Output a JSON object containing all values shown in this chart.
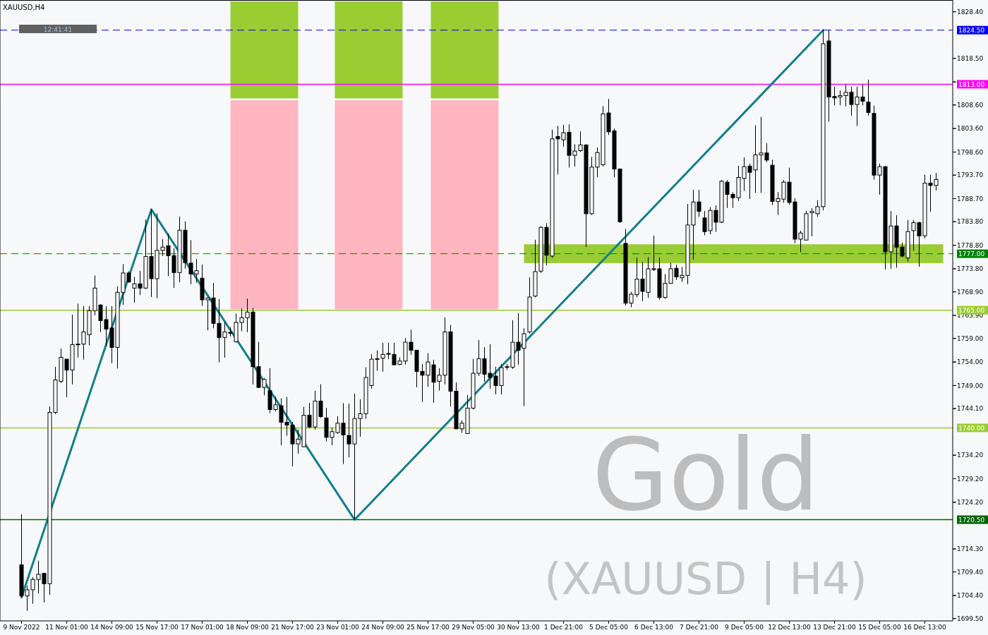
{
  "chart_data": {
    "type": "candlestick",
    "title": "XAUUSD,H4",
    "annotations": [
      "Gold",
      "(XAUUSD | H4)",
      "12:41:41"
    ],
    "categories": [
      "9 Nov 2022",
      null,
      null,
      null,
      null,
      null,
      null,
      null,
      "11 Nov 01:00",
      null,
      null,
      null,
      null,
      null,
      null,
      null,
      "14 Nov 09:00",
      null,
      null,
      null,
      null,
      null,
      null,
      null,
      "15 Nov 17:00",
      null,
      null,
      null,
      null,
      null,
      null,
      null,
      "17 Nov 01:00",
      null,
      null,
      null,
      null,
      null,
      null,
      null,
      "18 Nov 09:00",
      null,
      null,
      null,
      null,
      null,
      null,
      null,
      "21 Nov 17:00",
      null,
      null,
      null,
      null,
      null,
      null,
      null,
      "23 Nov 01:00",
      null,
      null,
      null,
      null,
      null,
      null,
      null,
      "24 Nov 09:00",
      null,
      null,
      null,
      null,
      null,
      null,
      null,
      "25 Nov 17:00",
      null,
      null,
      null,
      null,
      null,
      null,
      null,
      "29 Nov 05:00",
      null,
      null,
      null,
      null,
      null,
      null,
      null,
      "30 Nov 13:00",
      null,
      null,
      null,
      null,
      null,
      null,
      null,
      "1 Dec 21:00",
      null,
      null,
      null,
      null,
      null,
      null,
      null,
      "5 Dec 05:00",
      null,
      null,
      null,
      null,
      null,
      null,
      null,
      "6 Dec 13:00",
      null,
      null,
      null,
      null,
      null,
      null,
      null,
      "7 Dec 21:00",
      null,
      null,
      null,
      null,
      null,
      null,
      null,
      "9 Dec 05:00",
      null,
      null,
      null,
      null,
      null,
      null,
      null,
      "12 Dec 13:00",
      null,
      null,
      null,
      null,
      null,
      null,
      null,
      "13 Dec 21:00",
      null,
      null,
      null,
      null,
      null,
      null,
      null,
      "15 Dec 05:00",
      null,
      null,
      null,
      null,
      null,
      null,
      null,
      "16 Dec 13:00",
      null,
      null
    ],
    "ohlc": [
      [
        1710.9,
        1721.6,
        1704.0,
        1704.3
      ],
      [
        1704.3,
        1706.4,
        1701.2,
        1705.6
      ],
      [
        1705.6,
        1708.2,
        1702.7,
        1707.8
      ],
      [
        1707.8,
        1711.7,
        1704.9,
        1708.9
      ],
      [
        1709.1,
        1709.1,
        1703.0,
        1706.9
      ],
      [
        1706.9,
        1744.5,
        1704.6,
        1743.3
      ],
      [
        1743.3,
        1752.9,
        1743.0,
        1750.2
      ],
      [
        1749.9,
        1756.8,
        1749.6,
        1755.0
      ],
      [
        1754.6,
        1754.6,
        1746.6,
        1752.3
      ],
      [
        1752.3,
        1764.0,
        1749.3,
        1757.7
      ],
      [
        1757.7,
        1766.3,
        1755.0,
        1757.8
      ],
      [
        1757.8,
        1765.8,
        1754.6,
        1760.4
      ],
      [
        1759.8,
        1765.8,
        1757.6,
        1764.9
      ],
      [
        1764.9,
        1772.3,
        1764.0,
        1769.7
      ],
      [
        1766.1,
        1766.2,
        1760.4,
        1762.8
      ],
      [
        1763.0,
        1765.8,
        1757.4,
        1761.0
      ],
      [
        1761.2,
        1765.8,
        1753.8,
        1757.1
      ],
      [
        1757.1,
        1770.0,
        1752.7,
        1768.8
      ],
      [
        1768.8,
        1774.7,
        1766.2,
        1772.9
      ],
      [
        1772.9,
        1773.2,
        1770.9,
        1771.0
      ],
      [
        1769.7,
        1772.0,
        1766.7,
        1770.6
      ],
      [
        1770.6,
        1773.3,
        1768.3,
        1769.7
      ],
      [
        1769.7,
        1784.2,
        1769.6,
        1776.4
      ],
      [
        1776.4,
        1786.4,
        1767.9,
        1771.7
      ],
      [
        1771.7,
        1785.5,
        1767.6,
        1777.7
      ],
      [
        1777.7,
        1780.0,
        1776.6,
        1778.4
      ],
      [
        1778.7,
        1781.2,
        1772.3,
        1776.6
      ],
      [
        1776.6,
        1778.1,
        1769.8,
        1773.0
      ],
      [
        1773.0,
        1784.8,
        1771.0,
        1782.0
      ],
      [
        1782.0,
        1783.8,
        1773.9,
        1775.1
      ],
      [
        1775.0,
        1779.8,
        1770.6,
        1772.7
      ],
      [
        1772.7,
        1775.8,
        1770.9,
        1773.4
      ],
      [
        1771.8,
        1774.6,
        1766.0,
        1767.2
      ],
      [
        1767.2,
        1767.6,
        1760.8,
        1767.6
      ],
      [
        1767.6,
        1770.7,
        1761.2,
        1762.2
      ],
      [
        1762.2,
        1767.3,
        1754.0,
        1759.2
      ],
      [
        1759.2,
        1762.4,
        1755.0,
        1760.4
      ],
      [
        1760.3,
        1761.3,
        1759.5,
        1760.1
      ],
      [
        1758.3,
        1764.2,
        1758.2,
        1762.4
      ],
      [
        1762.4,
        1765.3,
        1760.6,
        1763.4
      ],
      [
        1763.4,
        1767.4,
        1760.4,
        1764.6
      ],
      [
        1764.6,
        1765.4,
        1749.3,
        1753.0
      ],
      [
        1753.0,
        1758.2,
        1748.6,
        1748.6
      ],
      [
        1748.6,
        1750.5,
        1747.0,
        1750.3
      ],
      [
        1747.9,
        1752.6,
        1743.2,
        1743.9
      ],
      [
        1743.9,
        1746.6,
        1743.6,
        1744.9
      ],
      [
        1744.7,
        1746.2,
        1736.4,
        1741.2
      ],
      [
        1741.2,
        1746.5,
        1738.4,
        1740.6
      ],
      [
        1740.6,
        1741.2,
        1731.9,
        1736.6
      ],
      [
        1736.6,
        1739.6,
        1734.6,
        1737.6
      ],
      [
        1736.0,
        1744.4,
        1736.0,
        1742.7
      ],
      [
        1742.7,
        1745.2,
        1740.0,
        1740.2
      ],
      [
        1740.2,
        1747.8,
        1739.7,
        1745.7
      ],
      [
        1745.7,
        1749.2,
        1742.2,
        1742.4
      ],
      [
        1742.1,
        1744.2,
        1737.2,
        1738.0
      ],
      [
        1738.0,
        1740.0,
        1736.4,
        1739.2
      ],
      [
        1739.0,
        1742.4,
        1738.8,
        1741.0
      ],
      [
        1741.0,
        1745.2,
        1732.4,
        1738.5
      ],
      [
        1738.4,
        1745.1,
        1733.8,
        1736.6
      ],
      [
        1736.6,
        1747.2,
        1720.5,
        1742.0
      ],
      [
        1742.0,
        1746.0,
        1738.2,
        1743.0
      ],
      [
        1743.0,
        1752.8,
        1742.0,
        1750.7
      ],
      [
        1749.0,
        1755.6,
        1748.4,
        1754.6
      ],
      [
        1754.6,
        1756.4,
        1752.2,
        1754.7
      ],
      [
        1754.8,
        1758.0,
        1752.0,
        1755.6
      ],
      [
        1755.7,
        1758.0,
        1754.7,
        1755.8
      ],
      [
        1755.6,
        1758.0,
        1753.4,
        1753.4
      ],
      [
        1753.5,
        1754.9,
        1753.4,
        1754.2
      ],
      [
        1754.2,
        1759.0,
        1753.5,
        1758.2
      ],
      [
        1758.2,
        1760.8,
        1755.6,
        1756.5
      ],
      [
        1756.5,
        1756.5,
        1748.7,
        1752.0
      ],
      [
        1752.0,
        1753.5,
        1745.6,
        1751.2
      ],
      [
        1751.2,
        1755.8,
        1748.8,
        1754.0
      ],
      [
        1753.4,
        1754.4,
        1745.4,
        1749.7
      ],
      [
        1749.9,
        1752.6,
        1748.0,
        1751.2
      ],
      [
        1751.2,
        1763.4,
        1749.3,
        1760.4
      ],
      [
        1760.4,
        1761.8,
        1744.6,
        1747.8
      ],
      [
        1747.8,
        1749.6,
        1739.8,
        1739.8
      ],
      [
        1739.8,
        1741.5,
        1739.0,
        1741.0
      ],
      [
        1738.8,
        1746.9,
        1738.8,
        1744.2
      ],
      [
        1744.2,
        1754.6,
        1744.0,
        1751.6
      ],
      [
        1751.6,
        1758.6,
        1751.1,
        1754.7
      ],
      [
        1754.7,
        1757.1,
        1749.9,
        1751.4
      ],
      [
        1751.6,
        1757.7,
        1748.4,
        1750.7
      ],
      [
        1751.0,
        1752.9,
        1747.2,
        1749.0
      ],
      [
        1749.0,
        1753.5,
        1747.2,
        1752.8
      ],
      [
        1752.9,
        1753.5,
        1752.4,
        1753.0
      ],
      [
        1752.9,
        1762.8,
        1752.6,
        1758.2
      ],
      [
        1758.2,
        1764.3,
        1753.5,
        1756.5
      ],
      [
        1756.9,
        1761.1,
        1744.7,
        1760.0
      ],
      [
        1760.4,
        1771.9,
        1760.1,
        1767.8
      ],
      [
        1768.0,
        1779.9,
        1767.8,
        1773.2
      ],
      [
        1773.3,
        1782.8,
        1773.0,
        1782.6
      ],
      [
        1782.6,
        1783.4,
        1774.6,
        1776.7
      ],
      [
        1776.5,
        1803.3,
        1776.2,
        1801.4
      ],
      [
        1801.9,
        1804.1,
        1793.9,
        1801.4
      ],
      [
        1801.2,
        1804.3,
        1799.8,
        1802.7
      ],
      [
        1802.8,
        1804.4,
        1795.4,
        1797.9
      ],
      [
        1797.9,
        1800.2,
        1795.6,
        1798.8
      ],
      [
        1798.9,
        1802.9,
        1798.7,
        1800.1
      ],
      [
        1800.1,
        1800.2,
        1778.5,
        1785.5
      ],
      [
        1785.5,
        1797.5,
        1785.3,
        1795.4
      ],
      [
        1795.4,
        1799.5,
        1793.3,
        1798.5
      ],
      [
        1795.9,
        1808.3,
        1795.6,
        1806.7
      ],
      [
        1806.9,
        1809.8,
        1802.3,
        1802.9
      ],
      [
        1803.1,
        1803.5,
        1793.3,
        1795.0
      ],
      [
        1795.0,
        1795.0,
        1783.6,
        1783.8
      ],
      [
        1779.2,
        1782.2,
        1766.1,
        1766.5
      ],
      [
        1766.5,
        1768.8,
        1765.7,
        1768.4
      ],
      [
        1768.3,
        1776.1,
        1767.8,
        1771.6
      ],
      [
        1771.6,
        1775.2,
        1767.0,
        1769.0
      ],
      [
        1768.8,
        1776.2,
        1767.7,
        1773.8
      ],
      [
        1773.8,
        1780.8,
        1773.4,
        1773.7
      ],
      [
        1773.8,
        1776.1,
        1767.3,
        1767.7
      ],
      [
        1767.7,
        1772.6,
        1767.5,
        1770.7
      ],
      [
        1770.7,
        1775.0,
        1770.7,
        1773.8
      ],
      [
        1773.9,
        1774.6,
        1771.5,
        1772.1
      ],
      [
        1771.9,
        1774.1,
        1771.1,
        1772.4
      ],
      [
        1772.4,
        1787.5,
        1770.6,
        1783.1
      ],
      [
        1783.1,
        1790.5,
        1775.8,
        1788.0
      ],
      [
        1788.0,
        1790.5,
        1784.9,
        1786.0
      ],
      [
        1784.6,
        1786.0,
        1781.0,
        1781.7
      ],
      [
        1781.9,
        1786.8,
        1781.2,
        1786.2
      ],
      [
        1786.2,
        1787.2,
        1781.7,
        1783.7
      ],
      [
        1783.7,
        1792.6,
        1783.6,
        1792.4
      ],
      [
        1792.2,
        1792.6,
        1786.8,
        1789.6
      ],
      [
        1789.6,
        1790.0,
        1786.8,
        1788.9
      ],
      [
        1788.9,
        1795.6,
        1788.3,
        1793.2
      ],
      [
        1793.0,
        1797.4,
        1790.4,
        1795.5
      ],
      [
        1795.6,
        1796.1,
        1788.7,
        1794.3
      ],
      [
        1794.8,
        1804.2,
        1790.0,
        1798.0
      ],
      [
        1798.0,
        1806.0,
        1790.0,
        1798.4
      ],
      [
        1798.4,
        1800.4,
        1796.5,
        1796.9
      ],
      [
        1795.8,
        1796.9,
        1787.4,
        1788.1
      ],
      [
        1788.1,
        1790.0,
        1785.3,
        1788.7
      ],
      [
        1788.6,
        1792.6,
        1787.9,
        1792.2
      ],
      [
        1792.2,
        1795.2,
        1787.5,
        1787.9
      ],
      [
        1788.0,
        1788.7,
        1779.3,
        1780.1
      ],
      [
        1780.1,
        1781.8,
        1777.4,
        1781.4
      ],
      [
        1779.9,
        1786.0,
        1779.9,
        1785.5
      ],
      [
        1785.7,
        1786.6,
        1780.8,
        1786.0
      ],
      [
        1785.5,
        1788.3,
        1784.9,
        1787.0
      ],
      [
        1787.0,
        1824.5,
        1786.3,
        1821.6
      ],
      [
        1822.2,
        1824.5,
        1805.1,
        1810.3
      ],
      [
        1810.4,
        1812.4,
        1808.6,
        1810.1
      ],
      [
        1810.3,
        1811.6,
        1808.6,
        1810.6
      ],
      [
        1810.6,
        1812.9,
        1808.4,
        1811.3
      ],
      [
        1811.3,
        1812.4,
        1806.4,
        1808.7
      ],
      [
        1808.7,
        1812.4,
        1804.2,
        1810.3
      ],
      [
        1810.3,
        1812.9,
        1808.6,
        1809.4
      ],
      [
        1809.2,
        1813.9,
        1806.4,
        1807.0
      ],
      [
        1806.8,
        1808.4,
        1792.8,
        1793.7
      ],
      [
        1793.7,
        1796.1,
        1789.6,
        1795.5
      ],
      [
        1795.5,
        1795.5,
        1773.7,
        1777.4
      ],
      [
        1777.4,
        1786.0,
        1773.9,
        1782.9
      ],
      [
        1782.9,
        1785.1,
        1774.1,
        1778.4
      ],
      [
        1778.4,
        1779.3,
        1776.3,
        1776.5
      ],
      [
        1776.1,
        1784.1,
        1775.4,
        1781.7
      ],
      [
        1781.9,
        1784.1,
        1777.7,
        1783.6
      ],
      [
        1783.6,
        1783.7,
        1774.3,
        1780.8
      ],
      [
        1780.8,
        1793.7,
        1780.3,
        1792.0
      ],
      [
        1792.0,
        1793.7,
        1786.0,
        1791.5
      ],
      [
        1791.5,
        1794.1,
        1790.5,
        1792.8
      ]
    ],
    "series": [
      {
        "type": "line",
        "color": "#0f7f8a",
        "values": [
          1704.0,
          null,
          null,
          null,
          null,
          null,
          null,
          null,
          null,
          null,
          null,
          null,
          null,
          null,
          null,
          null,
          null,
          null,
          null,
          null,
          null,
          null,
          null,
          1786.4,
          null,
          null,
          null,
          null,
          null,
          null,
          null,
          null,
          null,
          null,
          null,
          null,
          null,
          null,
          null,
          null,
          null,
          null,
          null,
          null,
          null,
          null,
          null,
          null,
          null,
          null,
          null,
          null,
          null,
          null,
          null,
          null,
          null,
          null,
          null,
          1720.5,
          null,
          null,
          null,
          null,
          null,
          null,
          null,
          null,
          null,
          null,
          null,
          null,
          null,
          null,
          null,
          null,
          null,
          null,
          null,
          null,
          null,
          null,
          null,
          null,
          null,
          null,
          null,
          null,
          null,
          null,
          null,
          null,
          null,
          null,
          null,
          null,
          null,
          null,
          null,
          null,
          null,
          null,
          null,
          null,
          null,
          null,
          null,
          null,
          null,
          null,
          null,
          null,
          null,
          null,
          null,
          null,
          null,
          null,
          null,
          null,
          null,
          null,
          null,
          null,
          null,
          null,
          null,
          null,
          null,
          null,
          null,
          null,
          null,
          null,
          null,
          null,
          null,
          null,
          null,
          null,
          null,
          null,
          1824.5,
          null,
          null,
          null,
          null,
          null,
          null,
          null,
          null,
          null,
          null,
          null,
          null,
          null,
          null,
          null,
          null,
          null,
          null,
          null,
          null
        ]
      }
    ],
    "ylim": [
      1699,
      1830.6
    ],
    "yticks": [
      {
        "value": 1699.5,
        "label": "1699.50"
      },
      {
        "value": 1704.4,
        "label": "1704.40"
      },
      {
        "value": 1709.4,
        "label": "1709.40"
      },
      {
        "value": 1714.3,
        "label": "1714.30"
      },
      {
        "value": 1724.2,
        "label": "1724.20"
      },
      {
        "value": 1729.2,
        "label": "1729.20"
      },
      {
        "value": 1734.2,
        "label": "1734.20"
      },
      {
        "value": 1744.1,
        "label": "1744.10"
      },
      {
        "value": 1749,
        "label": "1749.00"
      },
      {
        "value": 1754,
        "label": "1754.00"
      },
      {
        "value": 1759,
        "label": "1759.00"
      },
      {
        "value": 1763.9,
        "label": "1763.90"
      },
      {
        "value": 1768.9,
        "label": "1768.90"
      },
      {
        "value": 1773.8,
        "label": "1773.80"
      },
      {
        "value": 1778.8,
        "label": "1778.80"
      },
      {
        "value": 1783.8,
        "label": "1783.80"
      },
      {
        "value": 1788.7,
        "label": "1788.70"
      },
      {
        "value": 1793.7,
        "label": "1793.70"
      },
      {
        "value": 1798.6,
        "label": "1798.60"
      },
      {
        "value": 1803.6,
        "label": "1803.60"
      },
      {
        "value": 1808.6,
        "label": "1808.60"
      },
      {
        "value": 1813.5,
        "label": null
      },
      {
        "value": 1818.5,
        "label": "1818.50"
      },
      {
        "value": 1828.4,
        "label": "1828.40"
      }
    ],
    "ref_lines": [
      {
        "axis": "y",
        "value": 1824.5,
        "label": "1824.50",
        "color": "#0000ff",
        "line_style": "dashed"
      },
      {
        "axis": "y",
        "value": 1813,
        "label": "1813.00",
        "color": "#ff00ff",
        "line_style": "solid"
      },
      {
        "axis": "y",
        "value": 1777,
        "label": "1777.00",
        "color": "#008000",
        "line_style": "dashed"
      },
      {
        "axis": "y",
        "value": 1765,
        "label": "1765.00",
        "color": "#9acd32",
        "line_style": "solid"
      },
      {
        "axis": "y",
        "value": 1740,
        "label": "1740.00",
        "color": "#9acd32",
        "line_style": "solid"
      },
      {
        "axis": "y",
        "value": 1720.5,
        "label": "1720.50",
        "color": "#006400",
        "line_style": "solid"
      }
    ],
    "bands": [
      {
        "axis": "y",
        "from": 1775,
        "to": 1779,
        "color": "#9acd32"
      }
    ]
  }
}
